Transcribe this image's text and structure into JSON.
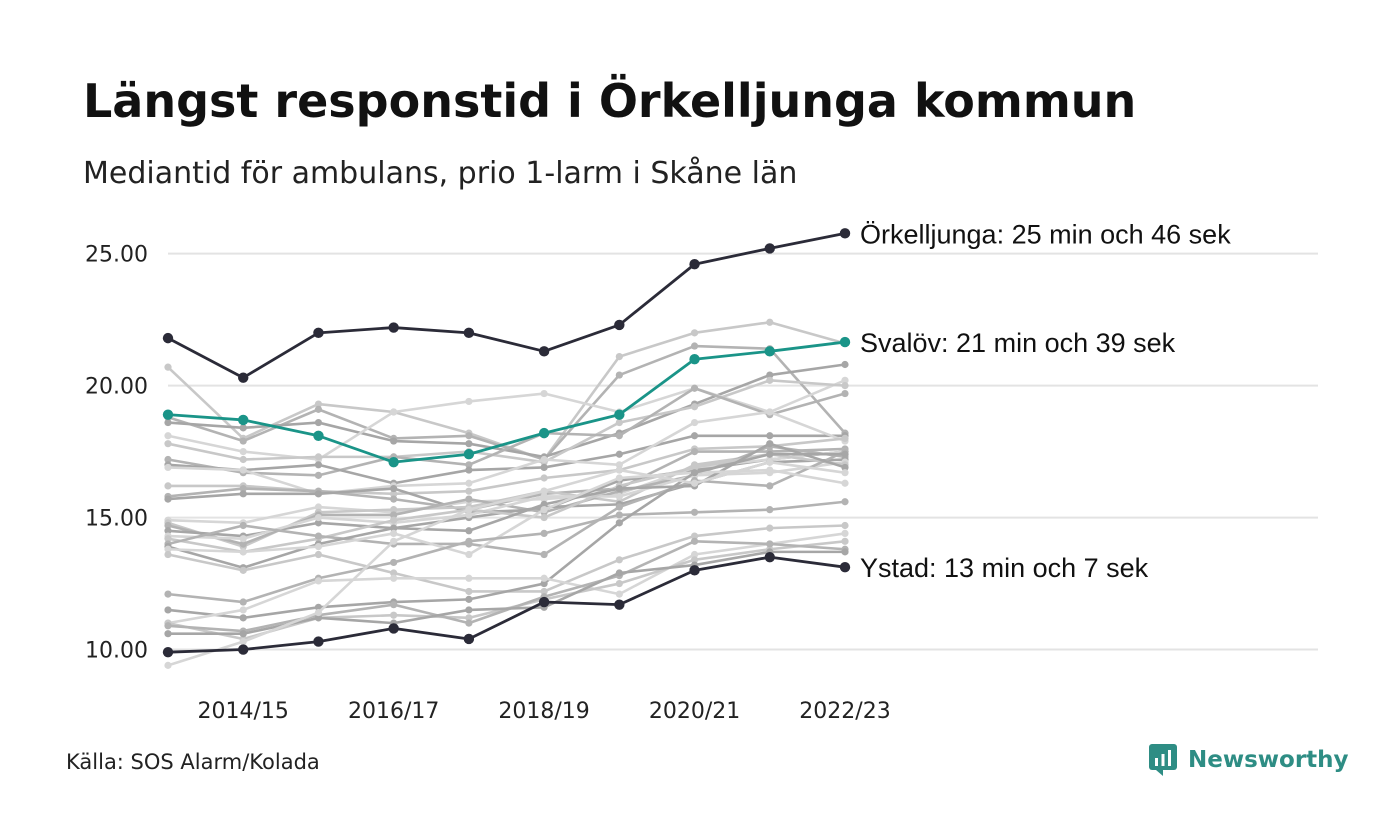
{
  "title": "Längst responstid i Örkelljunga kommun",
  "subtitle": "Mediantid för ambulans, prio 1-larm i Skåne län",
  "source": "Källa: SOS Alarm/Kolada",
  "brand": "Newsworthy",
  "colors": {
    "highlight_dark": "#2b2b38",
    "highlight_teal": "#1a9488",
    "background_lines": [
      "#c8c8c8",
      "#b3b3b3",
      "#a6a6a6",
      "#d6d6d6"
    ],
    "grid": "#e3e3e3",
    "brand": "#2e8d84"
  },
  "chart_data": {
    "type": "line",
    "title": "Längst responstid i Örkelljunga kommun",
    "subtitle": "Mediantid för ambulans, prio 1-larm i Skåne län",
    "x": [
      "2013/14",
      "2014/15",
      "2015/16",
      "2016/17",
      "2017/18",
      "2018/19",
      "2019/20",
      "2020/21",
      "2021/22",
      "2022/23"
    ],
    "x_tick_labels": [
      "2014/15",
      "2016/17",
      "2018/19",
      "2020/21",
      "2022/23"
    ],
    "y_ticks": [
      10,
      15,
      20,
      25
    ],
    "y_tick_labels": [
      "10.00",
      "15.00",
      "20.00",
      "25.00"
    ],
    "ylim": [
      9.3,
      26.2
    ],
    "grid": true,
    "highlighted": [
      {
        "name": "Örkelljunga",
        "label": "Örkelljunga: 25 min och 46 sek",
        "color": "#2b2b38",
        "values": [
          21.8,
          20.3,
          22.0,
          22.2,
          22.0,
          21.3,
          22.3,
          24.6,
          25.2,
          25.77
        ]
      },
      {
        "name": "Svalöv",
        "label": "Svalöv: 21 min och 39 sek",
        "color": "#1a9488",
        "values": [
          18.9,
          18.7,
          18.1,
          17.1,
          17.4,
          18.2,
          18.9,
          21.0,
          21.3,
          21.65
        ]
      },
      {
        "name": "Ystad",
        "label": "Ystad: 13 min och 7 sek",
        "color": "#2b2b38",
        "values": [
          9.9,
          10.0,
          10.3,
          10.8,
          10.4,
          11.8,
          11.7,
          13.0,
          13.5,
          13.12
        ]
      }
    ],
    "series": [
      {
        "values": [
          20.7,
          18.0,
          19.3,
          19.0,
          18.2,
          17.2,
          21.1,
          22.0,
          22.4,
          21.6
        ]
      },
      {
        "values": [
          18.8,
          17.9,
          19.1,
          18.0,
          18.1,
          17.2,
          20.4,
          21.5,
          21.4,
          18.2
        ]
      },
      {
        "values": [
          18.6,
          18.4,
          18.6,
          17.9,
          17.8,
          17.3,
          18.2,
          19.3,
          20.4,
          20.8
        ]
      },
      {
        "values": [
          18.1,
          17.5,
          17.2,
          19.0,
          19.4,
          19.7,
          19.0,
          19.9,
          19.0,
          20.2
        ]
      },
      {
        "values": [
          17.8,
          17.2,
          17.3,
          17.3,
          17.5,
          17.1,
          18.6,
          19.2,
          20.2,
          20.0
        ]
      },
      {
        "values": [
          17.2,
          16.7,
          16.6,
          17.3,
          17.0,
          18.2,
          18.1,
          19.9,
          18.9,
          19.7
        ]
      },
      {
        "values": [
          17.0,
          16.8,
          17.0,
          16.3,
          16.8,
          16.9,
          17.4,
          18.1,
          18.1,
          18.1
        ]
      },
      {
        "values": [
          16.9,
          16.8,
          15.9,
          16.2,
          16.3,
          17.2,
          17.0,
          18.6,
          19.0,
          17.9
        ]
      },
      {
        "values": [
          16.2,
          16.2,
          16.0,
          15.9,
          16.0,
          16.5,
          16.8,
          17.6,
          17.7,
          18.0
        ]
      },
      {
        "values": [
          15.8,
          16.1,
          16.0,
          15.7,
          15.3,
          15.9,
          16.1,
          17.5,
          17.5,
          17.6
        ]
      },
      {
        "values": [
          15.7,
          15.9,
          15.9,
          16.1,
          15.2,
          15.3,
          16.4,
          16.8,
          17.2,
          17.5
        ]
      },
      {
        "values": [
          14.9,
          14.8,
          15.4,
          15.2,
          15.6,
          15.7,
          15.9,
          16.9,
          17.2,
          17.5
        ]
      },
      {
        "values": [
          14.8,
          13.9,
          15.2,
          15.3,
          15.4,
          16.0,
          15.6,
          17.0,
          17.4,
          17.4
        ]
      },
      {
        "values": [
          14.7,
          14.0,
          15.1,
          15.1,
          15.7,
          15.2,
          16.0,
          16.6,
          17.7,
          17.3
        ]
      },
      {
        "values": [
          14.5,
          14.3,
          14.8,
          14.6,
          15.0,
          15.4,
          15.5,
          16.3,
          17.1,
          17.2
        ]
      },
      {
        "values": [
          14.3,
          14.2,
          15.0,
          14.8,
          15.1,
          15.8,
          15.8,
          16.6,
          16.7,
          17.1
        ]
      },
      {
        "values": [
          14.2,
          13.7,
          14.2,
          14.9,
          15.3,
          15.0,
          16.2,
          16.9,
          17.4,
          17.0
        ]
      },
      {
        "values": [
          14.0,
          14.7,
          14.3,
          14.0,
          14.0,
          13.6,
          15.4,
          16.4,
          16.2,
          17.5
        ]
      },
      {
        "values": [
          13.9,
          13.1,
          14.0,
          14.6,
          14.5,
          15.5,
          16.1,
          16.2,
          17.8,
          16.9
        ]
      },
      {
        "values": [
          13.8,
          13.7,
          13.9,
          14.4,
          13.6,
          15.3,
          16.5,
          16.7,
          16.8,
          16.3
        ]
      },
      {
        "values": [
          13.6,
          13.0,
          13.6,
          12.9,
          12.2,
          12.2,
          13.4,
          14.3,
          14.6,
          14.7
        ]
      },
      {
        "values": [
          12.1,
          11.8,
          12.7,
          13.3,
          14.1,
          14.4,
          15.1,
          15.2,
          15.3,
          15.6
        ]
      },
      {
        "values": [
          11.5,
          11.2,
          11.6,
          11.8,
          11.9,
          12.5,
          14.8,
          16.7,
          17.4,
          17.4
        ]
      },
      {
        "values": [
          11.0,
          11.5,
          12.6,
          12.7,
          12.7,
          12.7,
          12.1,
          13.6,
          14.0,
          14.4
        ]
      },
      {
        "values": [
          11.0,
          10.4,
          11.2,
          11.3,
          11.2,
          11.9,
          12.5,
          13.4,
          13.8,
          14.1
        ]
      },
      {
        "values": [
          10.9,
          10.7,
          11.3,
          11.7,
          11.0,
          12.0,
          12.8,
          14.1,
          14.0,
          13.8
        ]
      },
      {
        "values": [
          10.6,
          10.6,
          11.2,
          11.0,
          11.5,
          11.6,
          12.9,
          13.2,
          13.7,
          13.7
        ]
      },
      {
        "values": [
          9.4,
          10.3,
          11.4,
          14.1,
          15.3,
          16.0,
          16.8,
          16.3,
          17.1,
          16.7
        ]
      }
    ]
  }
}
